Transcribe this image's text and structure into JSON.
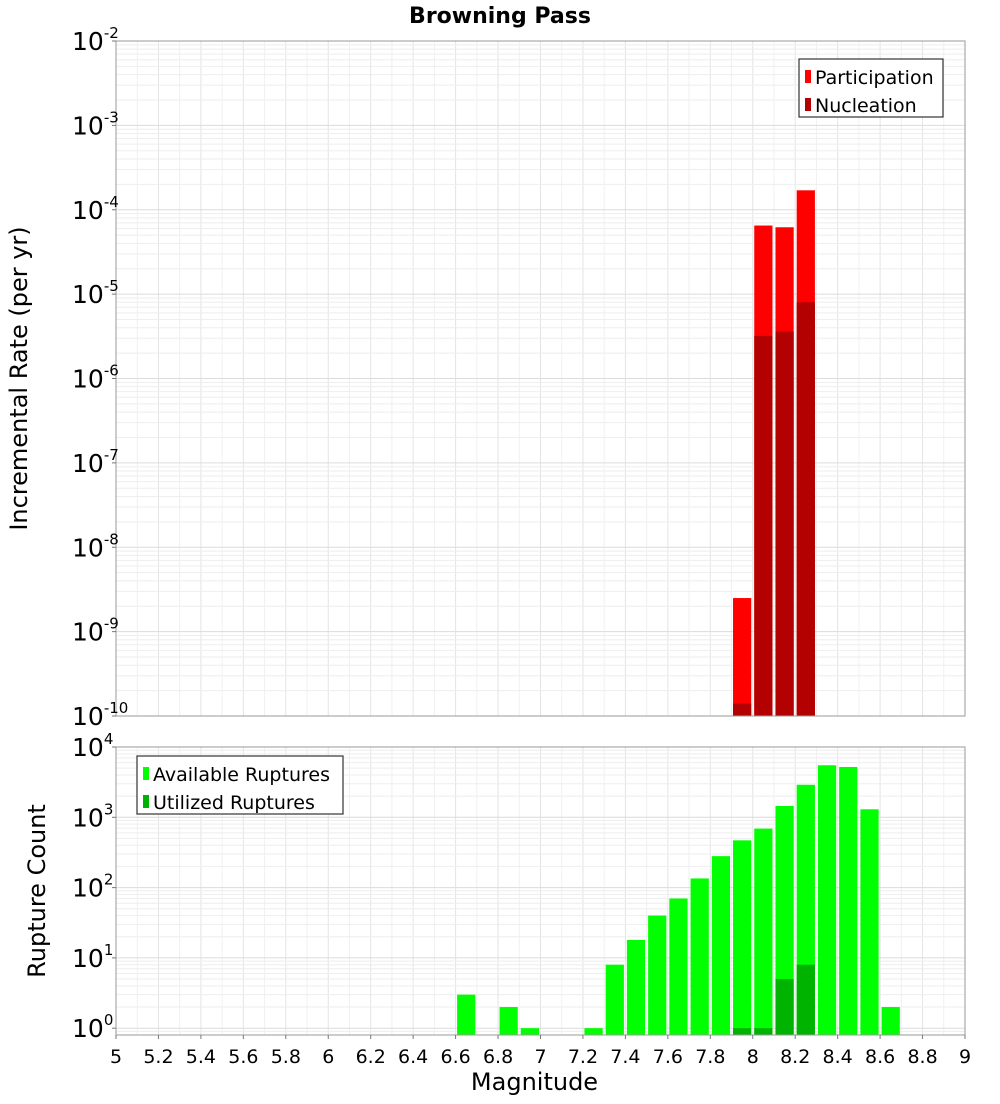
{
  "chart_data": [
    {
      "type": "bar",
      "title": "Browning Pass",
      "xlabel": "",
      "ylabel": "Incremental Rate (per yr)",
      "yscale": "log",
      "ylim": [
        1e-10,
        0.01
      ],
      "xlim": [
        5,
        9
      ],
      "ytick_labels": [
        "10^-10",
        "10^-9",
        "10^-8",
        "10^-7",
        "10^-6",
        "10^-5",
        "10^-4",
        "10^-3",
        "10^-2"
      ],
      "grid": true,
      "legend": "top-right",
      "bin_width": 0.1,
      "series": [
        {
          "name": "Participation",
          "color": "#ff0000",
          "x": [
            7.95,
            8.05,
            8.15,
            8.25
          ],
          "values": [
            2.5e-09,
            6.5e-05,
            6.2e-05,
            0.00017
          ]
        },
        {
          "name": "Nucleation",
          "color": "#b30000",
          "x": [
            7.95,
            8.05,
            8.15,
            8.25
          ],
          "values": [
            1.4e-10,
            3.2e-06,
            3.6e-06,
            8e-06
          ]
        }
      ]
    },
    {
      "type": "bar",
      "title": "",
      "xlabel": "Magnitude",
      "ylabel": "Rupture Count",
      "yscale": "log",
      "ylim": [
        0.8,
        10000
      ],
      "xlim": [
        5,
        9
      ],
      "xtick_labels": [
        "5",
        "5.2",
        "5.4",
        "5.6",
        "5.8",
        "6",
        "6.2",
        "6.4",
        "6.6",
        "6.8",
        "7",
        "7.2",
        "7.4",
        "7.6",
        "7.8",
        "8",
        "8.2",
        "8.4",
        "8.6",
        "8.8",
        "9"
      ],
      "ytick_labels": [
        "10^0",
        "10^1",
        "10^2",
        "10^3",
        "10^4"
      ],
      "grid": true,
      "legend": "top-left",
      "bin_width": 0.1,
      "series": [
        {
          "name": "Available Ruptures",
          "color": "#00ff00",
          "x": [
            6.65,
            6.85,
            6.95,
            7.25,
            7.35,
            7.45,
            7.55,
            7.65,
            7.75,
            7.85,
            7.95,
            8.05,
            8.15,
            8.25,
            8.35,
            8.45,
            8.55,
            8.65
          ],
          "values": [
            3,
            2,
            1,
            1,
            8,
            18,
            40,
            70,
            135,
            280,
            470,
            690,
            1450,
            2900,
            5500,
            5200,
            1300,
            2
          ]
        },
        {
          "name": "Utilized Ruptures",
          "color": "#00b300",
          "x": [
            7.95,
            8.05,
            8.15,
            8.25
          ],
          "values": [
            1,
            1,
            5,
            8
          ]
        }
      ]
    }
  ]
}
